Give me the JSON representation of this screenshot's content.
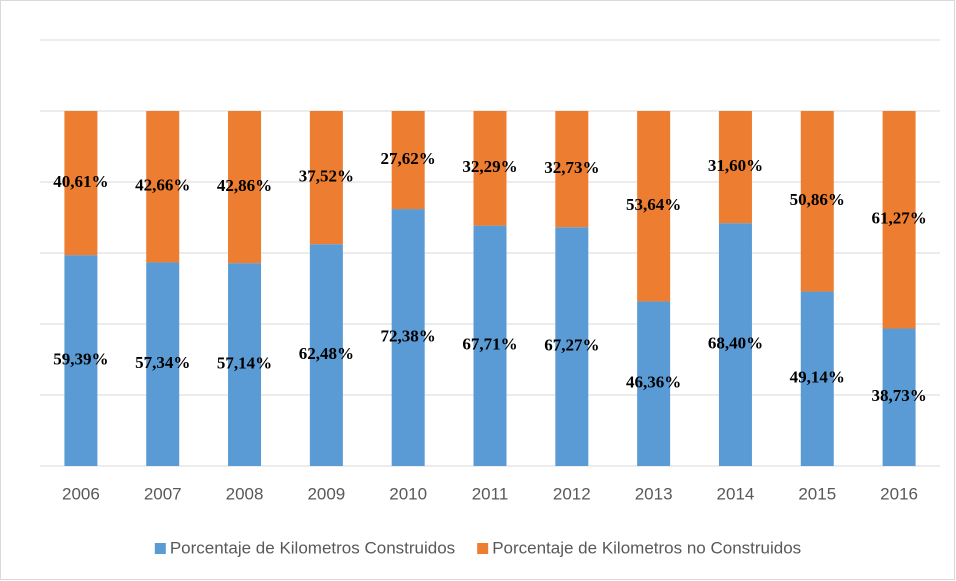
{
  "chart_data": {
    "type": "stacked_bar",
    "categories": [
      "2006",
      "2007",
      "2008",
      "2009",
      "2010",
      "2011",
      "2012",
      "2013",
      "2014",
      "2015",
      "2016"
    ],
    "series": [
      {
        "name": "Porcentaje de Kilometros Construidos",
        "color": "#5b9bd5",
        "values": [
          59.39,
          57.34,
          57.14,
          62.48,
          72.38,
          67.71,
          67.27,
          46.36,
          68.4,
          49.14,
          38.73
        ],
        "value_labels": [
          "59,39%",
          "57,34%",
          "57,14%",
          "62,48%",
          "72,38%",
          "67,71%",
          "67,27%",
          "46,36%",
          "68,40%",
          "49,14%",
          "38,73%"
        ]
      },
      {
        "name": "Porcentaje de Kilometros no Construidos",
        "color": "#ed7d31",
        "values": [
          40.61,
          42.66,
          42.86,
          37.52,
          27.62,
          32.29,
          32.73,
          53.64,
          31.6,
          50.86,
          61.27
        ],
        "value_labels": [
          "40,61%",
          "42,66%",
          "42,86%",
          "37,52%",
          "27,62%",
          "32,29%",
          "32,73%",
          "53,64%",
          "31,60%",
          "50,86%",
          "61,27%"
        ]
      }
    ],
    "ylim": [
      0,
      120
    ],
    "yticks": [
      0,
      20,
      40,
      60,
      80,
      100,
      120
    ],
    "grid": true,
    "legend": "bottom"
  }
}
